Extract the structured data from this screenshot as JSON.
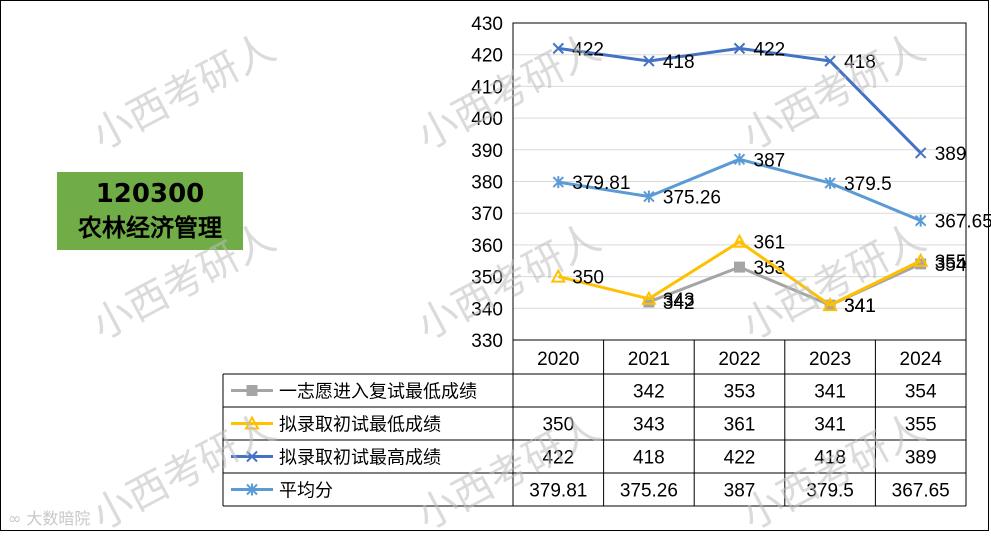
{
  "label_box": {
    "code": "120300",
    "name": "农林经济管理"
  },
  "watermark": "小西考研人",
  "brand": "大数暗院",
  "colors": {
    "series1": "#a5a5a5",
    "series2": "#ffc000",
    "series3": "#4472c4",
    "series4": "#5b9bd5",
    "label_box_bg": "#70ad47"
  },
  "chart_data": {
    "type": "line",
    "categories": [
      "2020",
      "2021",
      "2022",
      "2023",
      "2024"
    ],
    "ylim": [
      330,
      430
    ],
    "ytick_step": 10,
    "yticks": [
      "330",
      "340",
      "350",
      "360",
      "370",
      "380",
      "390",
      "400",
      "410",
      "420",
      "430"
    ],
    "grid": true,
    "legend": "data-table",
    "series": [
      {
        "name": "一志愿进入复试最低成绩",
        "marker": "square",
        "values": [
          null,
          342,
          353,
          341,
          354
        ],
        "labels": [
          "",
          "342",
          "353",
          "341",
          "354"
        ]
      },
      {
        "name": "拟录取初试最低成绩",
        "marker": "triangle",
        "values": [
          350,
          343,
          361,
          341,
          355
        ],
        "labels": [
          "350",
          "343",
          "361",
          "341",
          "355"
        ]
      },
      {
        "name": "拟录取初试最高成绩",
        "marker": "x",
        "values": [
          422,
          418,
          422,
          418,
          389
        ],
        "labels": [
          "422",
          "418",
          "422",
          "418",
          "389"
        ]
      },
      {
        "name": "平均分",
        "marker": "star",
        "values": [
          379.81,
          375.26,
          387,
          379.5,
          367.65
        ],
        "labels": [
          "379.81",
          "375.26",
          "387",
          "379.5",
          "367.65"
        ]
      }
    ]
  }
}
